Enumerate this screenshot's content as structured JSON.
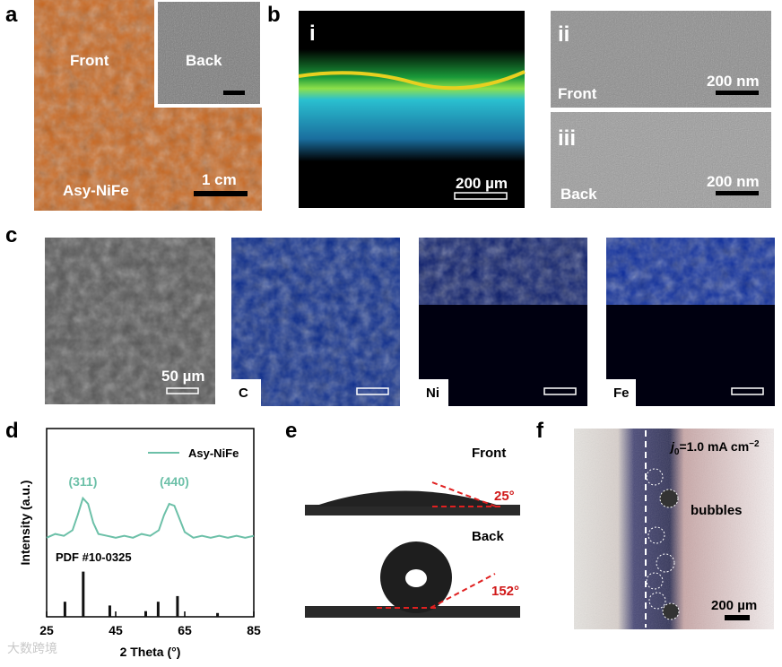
{
  "panels": {
    "a": {
      "label": "a",
      "front": "Front",
      "back": "Back",
      "sample": "Asy-NiFe",
      "scale": "1 cm"
    },
    "b": {
      "label": "b",
      "i": {
        "label": "i",
        "scale": "200 µm"
      },
      "ii": {
        "label": "ii",
        "side": "Front",
        "scale": "200 nm"
      },
      "iii": {
        "label": "iii",
        "side": "Back",
        "scale": "200 nm"
      }
    },
    "c": {
      "label": "c",
      "scale": "50 µm",
      "maps": [
        "C",
        "Ni",
        "Fe"
      ]
    },
    "d": {
      "label": "d"
    },
    "e": {
      "label": "e",
      "front": "Front",
      "back": "Back",
      "angles": [
        "25°",
        "152°"
      ]
    },
    "f": {
      "label": "f",
      "current": [
        "j",
        "0",
        "=1.0 mA cm",
        "−2"
      ],
      "bubbles": "bubbles",
      "scale": "200 µm"
    }
  },
  "chart_data": {
    "type": "line",
    "xlabel": "2 Theta (°)",
    "ylabel": "Intensity (a.u.)",
    "xlim": [
      25,
      85
    ],
    "xticks": [
      25,
      45,
      65,
      85
    ],
    "ylim": [
      0,
      100
    ],
    "series": [
      {
        "name": "Asy-NiFe",
        "color": "#6cc0a8",
        "x": [
          25,
          27.5,
          30,
          32.5,
          34,
          35.5,
          37,
          38.5,
          40,
          42.5,
          45,
          47.5,
          50,
          52.5,
          55,
          57.5,
          59,
          60.5,
          62,
          63.5,
          65,
          67.5,
          70,
          72.5,
          75,
          77.5,
          80,
          82.5,
          85
        ],
        "values": [
          42,
          44,
          43,
          46,
          54,
          63,
          60,
          50,
          44,
          43,
          42,
          43,
          42,
          44,
          43,
          46,
          54,
          60,
          59,
          52,
          45,
          42,
          43,
          42,
          43,
          42,
          43,
          42,
          43
        ]
      }
    ],
    "reference": {
      "name": "PDF #10-0325",
      "color": "#111111",
      "x": [
        30.3,
        35.6,
        43.3,
        53.7,
        57.3,
        62.9,
        74.5
      ],
      "values": [
        8,
        24,
        6,
        3,
        8,
        11,
        2
      ]
    },
    "annotations": [
      {
        "text": "(311)",
        "x": 35.5
      },
      {
        "text": "(440)",
        "x": 62
      }
    ]
  },
  "watermark": "大数跨境"
}
